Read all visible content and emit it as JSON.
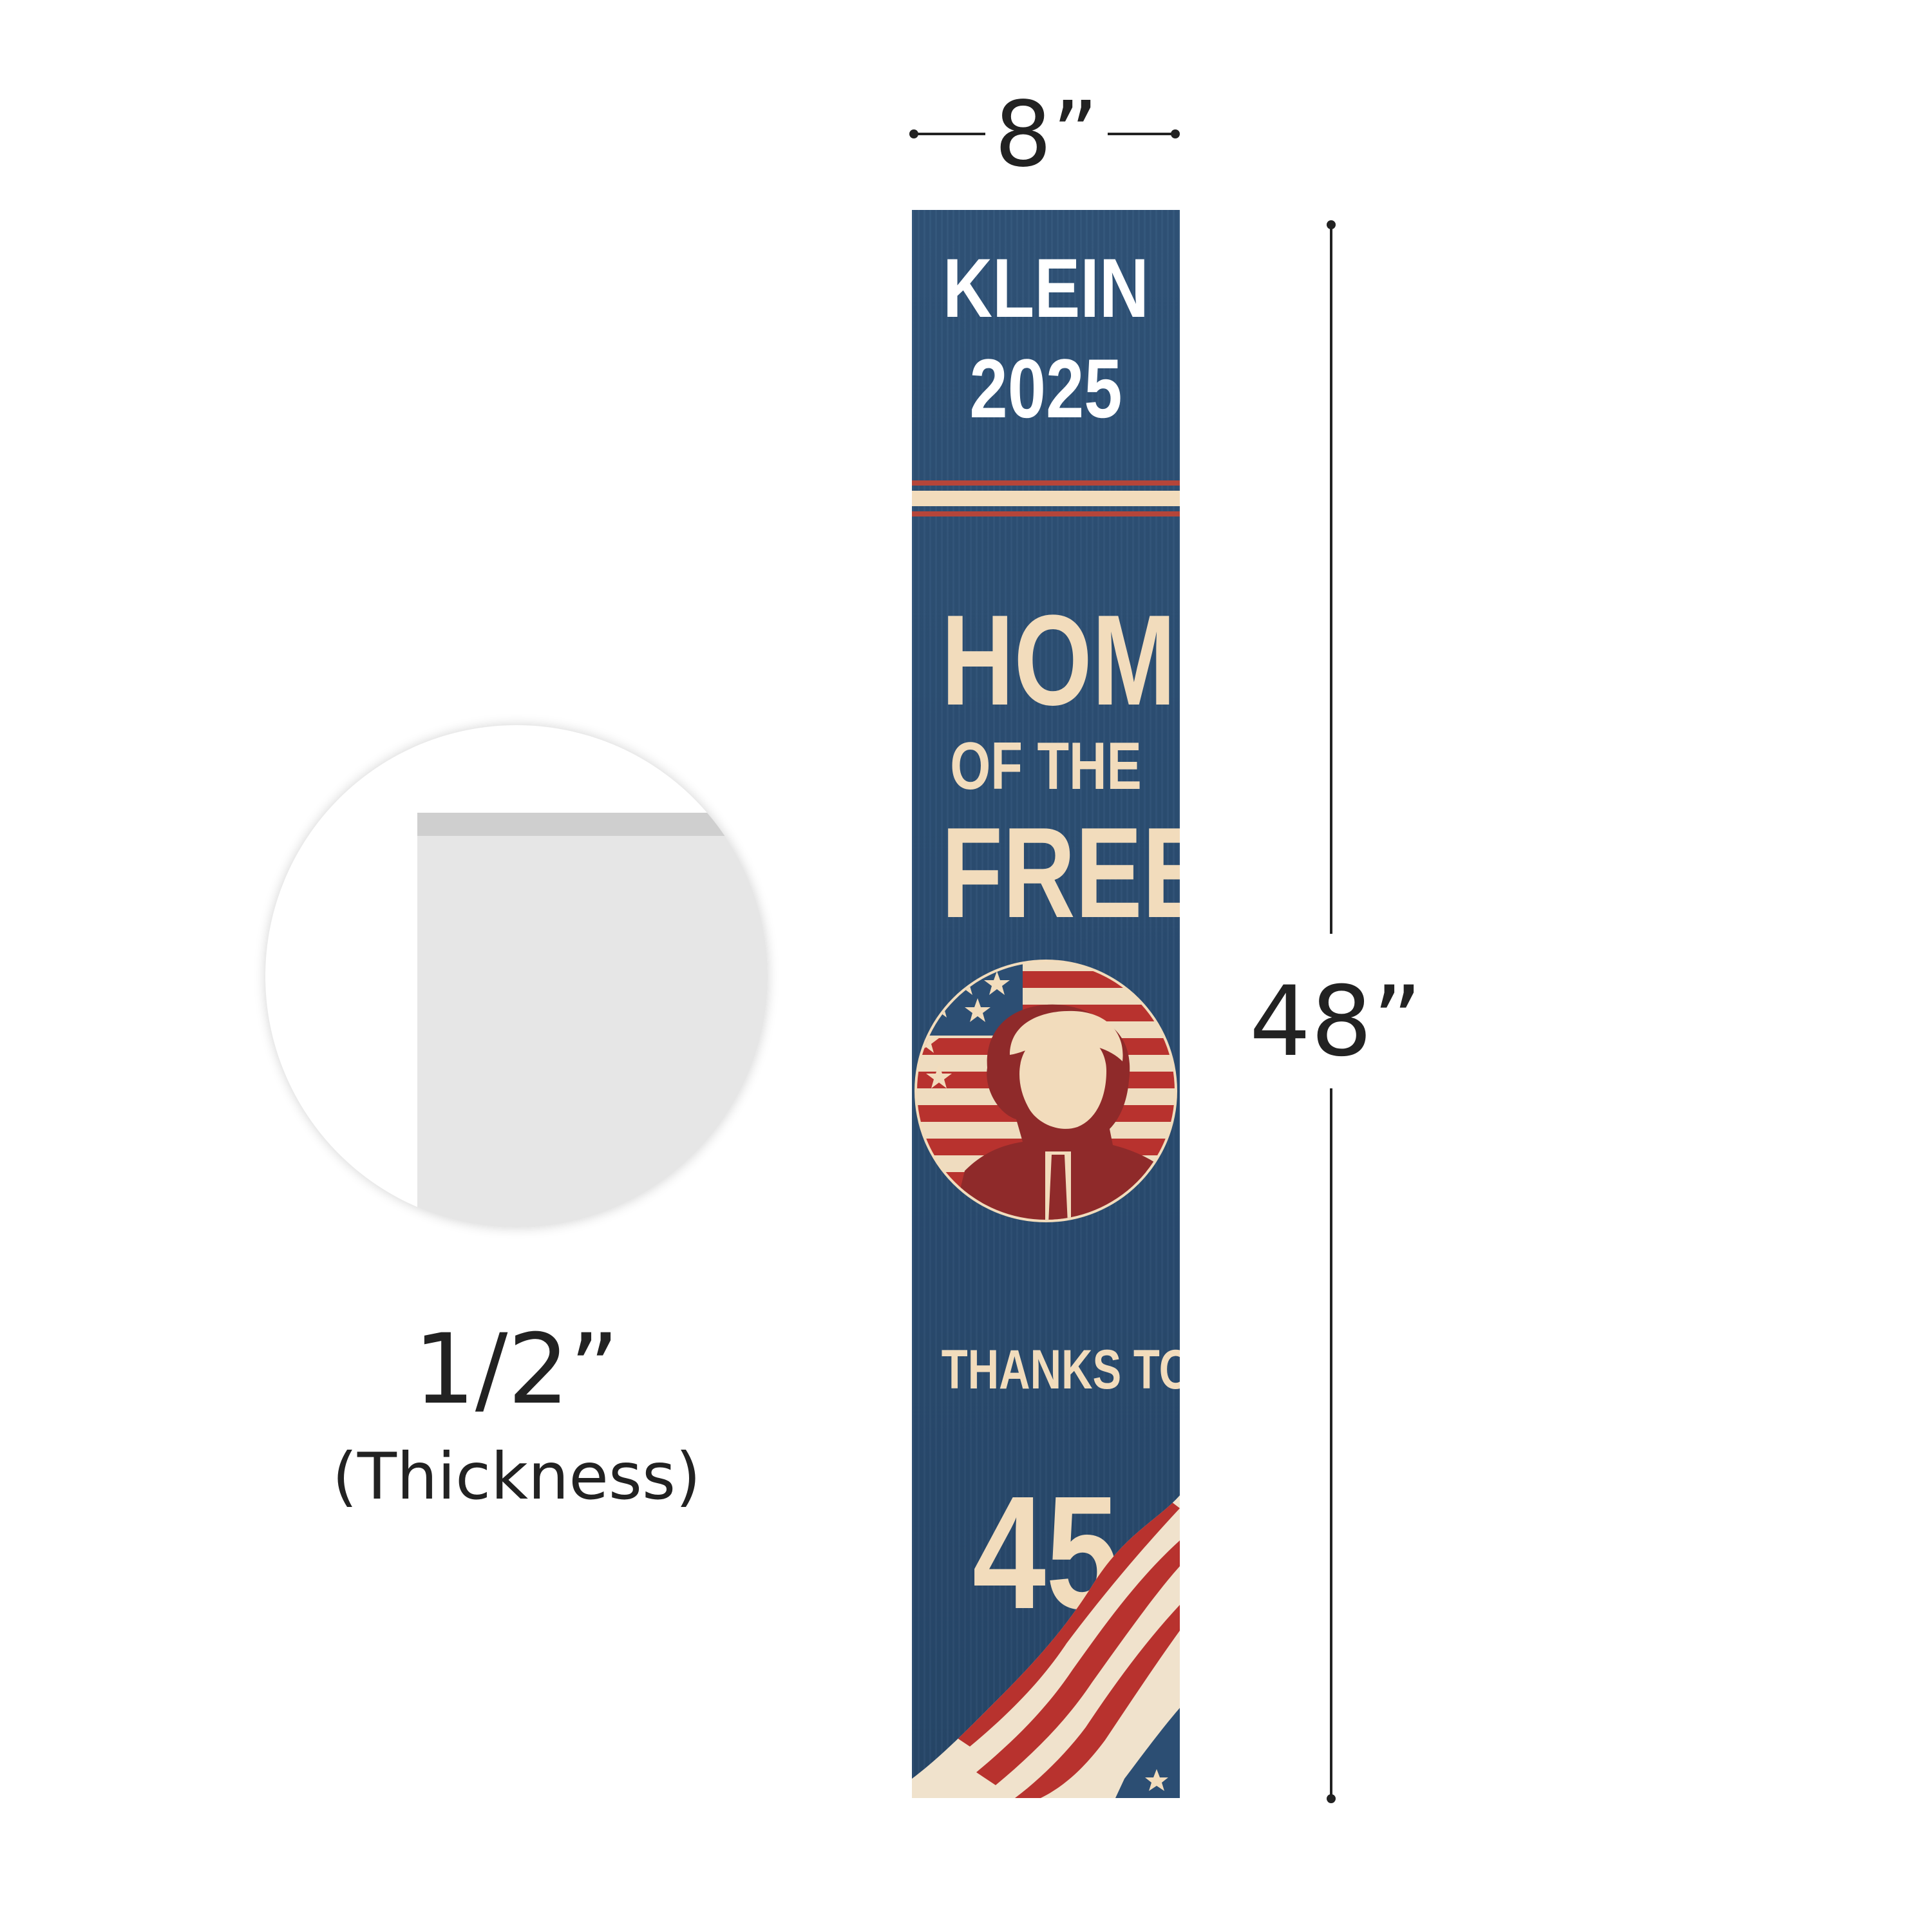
{
  "dimensions": {
    "width": "8”",
    "height": "48”",
    "thickness": "1/2”",
    "thickness_label": "(Thickness)"
  },
  "sign": {
    "line1": "KLEIN",
    "line2": "2025",
    "headline_1": "HOME",
    "headline_2": "OF THE",
    "headline_3": "FREE",
    "footer_1": "THANKS TO",
    "footer_2": "45"
  },
  "colors": {
    "board_blue": "#2c4e73",
    "cream": "#f2dcbc",
    "stripe_red": "#b5453a",
    "flag_red": "#b8322e",
    "portrait_red": "#8f2a2a"
  }
}
